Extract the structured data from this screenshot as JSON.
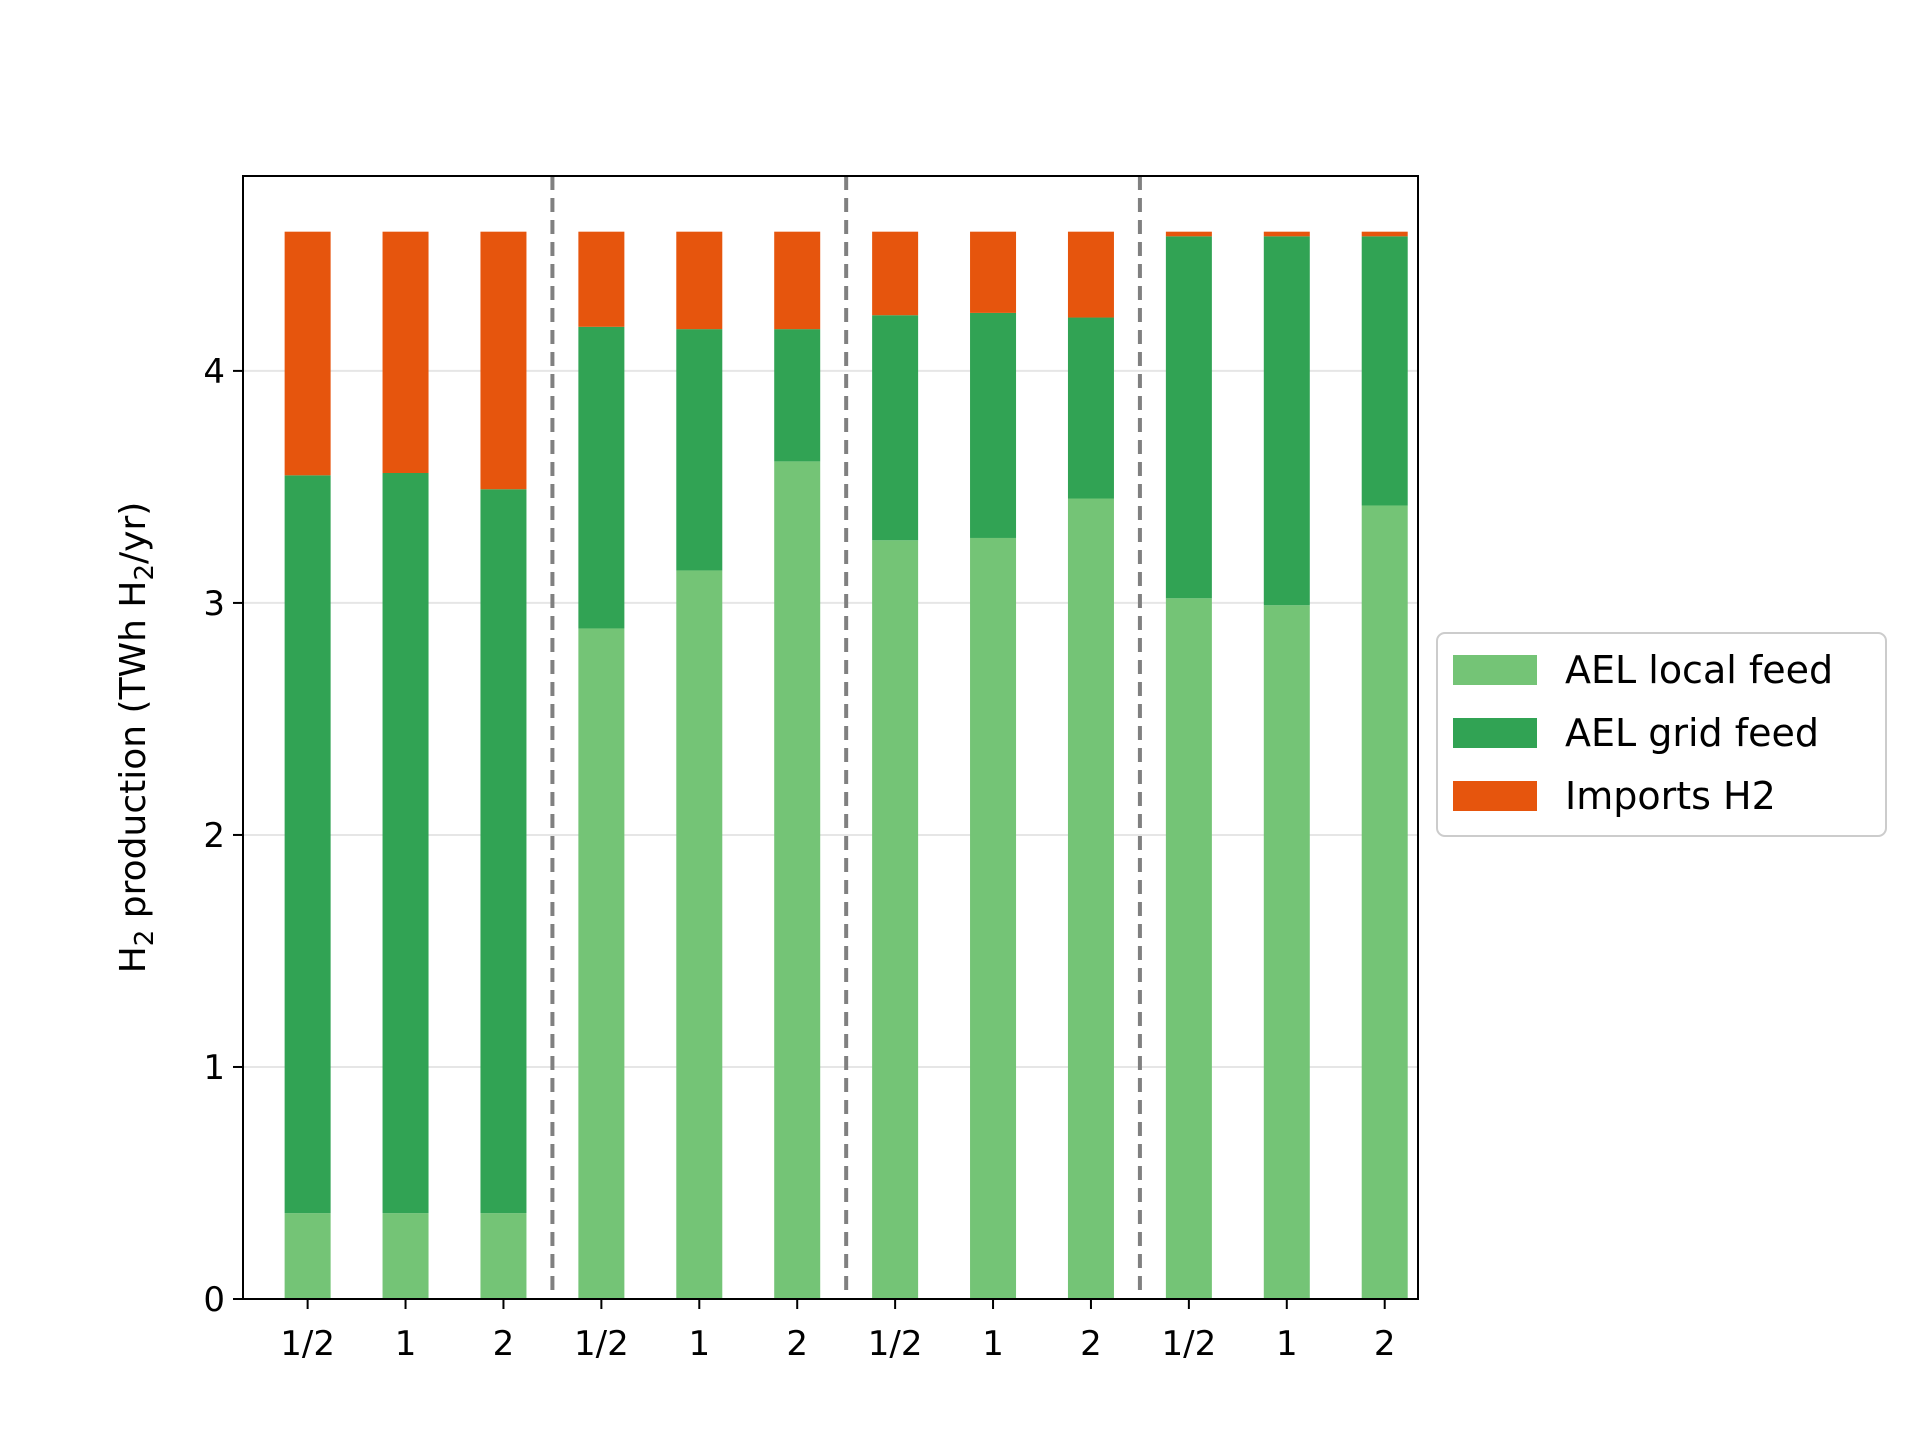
{
  "chart_data": {
    "type": "bar",
    "stacked": true,
    "categories": [
      "1/2",
      "1",
      "2",
      "1/2",
      "1",
      "2",
      "1/2",
      "1",
      "2",
      "1/2",
      "1",
      "2"
    ],
    "group_separators_after_index": [
      2,
      5,
      8
    ],
    "series": [
      {
        "name": "AEL local feed",
        "color": "#74c476",
        "values": [
          0.37,
          0.37,
          0.37,
          2.89,
          3.14,
          3.61,
          3.27,
          3.28,
          3.45,
          3.02,
          2.99,
          3.42
        ]
      },
      {
        "name": "AEL grid feed",
        "color": "#31a354",
        "values": [
          3.18,
          3.19,
          3.12,
          1.3,
          1.04,
          0.57,
          0.97,
          0.97,
          0.78,
          1.56,
          1.59,
          1.16
        ]
      },
      {
        "name": "Imports H2",
        "color": "#e6550d",
        "values": [
          1.05,
          1.04,
          1.11,
          0.41,
          0.42,
          0.42,
          0.36,
          0.35,
          0.37,
          0.02,
          0.02,
          0.02
        ]
      }
    ],
    "ylabel_main": "H",
    "ylabel_sub1": "2",
    "ylabel_mid": " production  (TWh H",
    "ylabel_sub2": "2",
    "ylabel_end": "/yr)",
    "xlabel": "",
    "ylim": [
      0,
      4.84
    ],
    "yticks": [
      "0",
      "1",
      "2",
      "3",
      "4"
    ],
    "grid": "horizontal",
    "legend_position": "right"
  }
}
